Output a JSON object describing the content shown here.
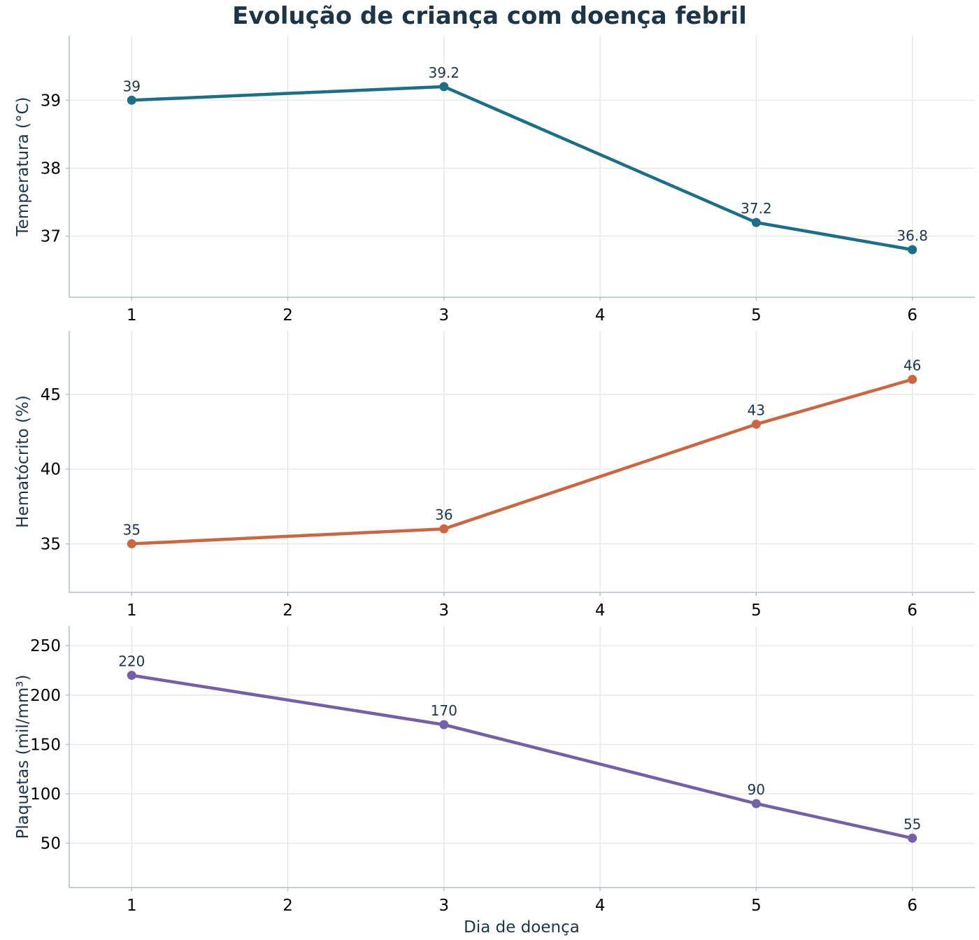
{
  "chart_data": {
    "type": "line",
    "title": "Evolução de criança com doença febril",
    "xlabel": "Dia de doença",
    "x": [
      1,
      3,
      5,
      6
    ],
    "x_ticks": [
      1,
      2,
      3,
      4,
      5,
      6
    ],
    "xlim": [
      0.6,
      6.4
    ],
    "grid": true,
    "panels": [
      {
        "ylabel": "Temperatura (°C)",
        "values": [
          39,
          39.2,
          37.2,
          36.8
        ],
        "value_labels": [
          "39",
          "39.2",
          "37.2",
          "36.8"
        ],
        "ylim": [
          36.1,
          39.95
        ],
        "y_ticks": [
          37,
          38,
          39
        ],
        "color": "#1b6f87"
      },
      {
        "ylabel": "Hematócrito (%)",
        "values": [
          35,
          36,
          43,
          46
        ],
        "value_labels": [
          "35",
          "36",
          "43",
          "46"
        ],
        "ylim": [
          31.75,
          49.25
        ],
        "y_ticks": [
          35,
          40,
          45
        ],
        "color": "#cc6640"
      },
      {
        "ylabel": "Plaquetas (mil/mm³)",
        "values": [
          220,
          170,
          90,
          55
        ],
        "value_labels": [
          "220",
          "170",
          "90",
          "55"
        ],
        "ylim": [
          5,
          270
        ],
        "y_ticks": [
          50,
          100,
          150,
          200,
          250
        ],
        "color": "#7460a6"
      }
    ]
  }
}
